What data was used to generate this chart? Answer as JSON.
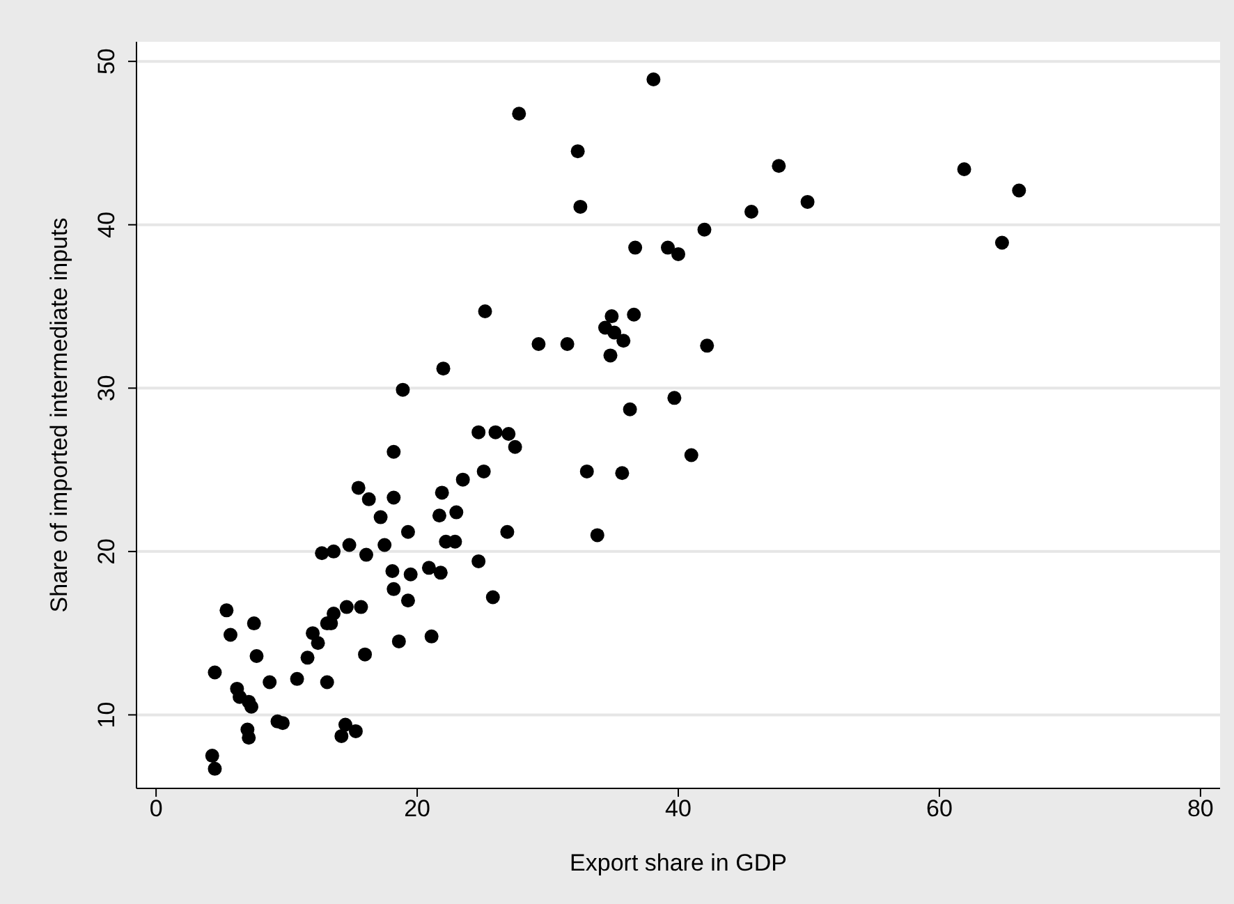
{
  "chart_data": {
    "type": "scatter",
    "xlabel": "Export share in GDP",
    "ylabel": "Share of imported intermediate inputs",
    "x": [
      38.1,
      27.8,
      32.3,
      32.5,
      47.7,
      61.9,
      66.1,
      64.8,
      45.6,
      49.9,
      42.0,
      36.7,
      39.2,
      40.0,
      25.2,
      29.3,
      31.5,
      34.9,
      36.6,
      34.4,
      35.1,
      35.8,
      34.8,
      42.2,
      22.0,
      18.9,
      39.7,
      36.3,
      41.0,
      33.0,
      35.7,
      33.8,
      24.7,
      26.0,
      27.0,
      27.5,
      18.2,
      25.1,
      23.5,
      15.5,
      16.3,
      18.2,
      21.9,
      17.2,
      21.7,
      23.0,
      26.9,
      19.3,
      17.5,
      22.2,
      22.9,
      12.7,
      13.6,
      14.8,
      16.1,
      18.1,
      19.5,
      20.9,
      21.8,
      24.7,
      18.2,
      19.3,
      25.8,
      18.6,
      21.1,
      5.4,
      7.5,
      5.7,
      7.7,
      4.5,
      6.2,
      6.4,
      7.1,
      7.3,
      8.7,
      10.8,
      11.6,
      12.0,
      12.4,
      13.1,
      13.1,
      13.6,
      14.6,
      15.7,
      16.0,
      13.4,
      7.0,
      7.1,
      9.3,
      9.7,
      14.5,
      14.2,
      15.3,
      4.3,
      4.5
    ],
    "values": [
      48.9,
      46.8,
      44.5,
      41.1,
      43.6,
      43.4,
      42.1,
      38.9,
      40.8,
      41.4,
      39.7,
      38.6,
      38.6,
      38.2,
      34.7,
      32.7,
      32.7,
      34.4,
      34.5,
      33.7,
      33.4,
      32.9,
      32.0,
      32.6,
      31.2,
      29.9,
      29.4,
      28.7,
      25.9,
      24.9,
      24.8,
      21.0,
      27.3,
      27.3,
      27.2,
      26.4,
      26.1,
      24.9,
      24.4,
      23.9,
      23.2,
      23.3,
      23.6,
      22.1,
      22.2,
      22.4,
      21.2,
      21.2,
      20.4,
      20.6,
      20.6,
      19.9,
      20.0,
      20.4,
      19.8,
      18.8,
      18.6,
      19.0,
      18.7,
      19.4,
      17.7,
      17.0,
      17.2,
      14.5,
      14.8,
      16.4,
      15.6,
      14.9,
      13.6,
      12.6,
      11.6,
      11.1,
      10.8,
      10.5,
      12.0,
      12.2,
      13.5,
      15.0,
      14.4,
      12.0,
      15.6,
      16.2,
      16.6,
      16.6,
      13.7,
      15.6,
      9.1,
      8.6,
      9.6,
      9.5,
      9.4,
      8.7,
      9.0,
      7.5,
      6.7
    ],
    "color": "#000000",
    "marker": "circle",
    "xlim": [
      -1.5,
      81.5
    ],
    "xticks": [
      0,
      20,
      40,
      60,
      80
    ],
    "ylim": [
      5.5,
      51.2
    ],
    "yticks": [
      10,
      20,
      30,
      40,
      50
    ],
    "grid": "y"
  }
}
